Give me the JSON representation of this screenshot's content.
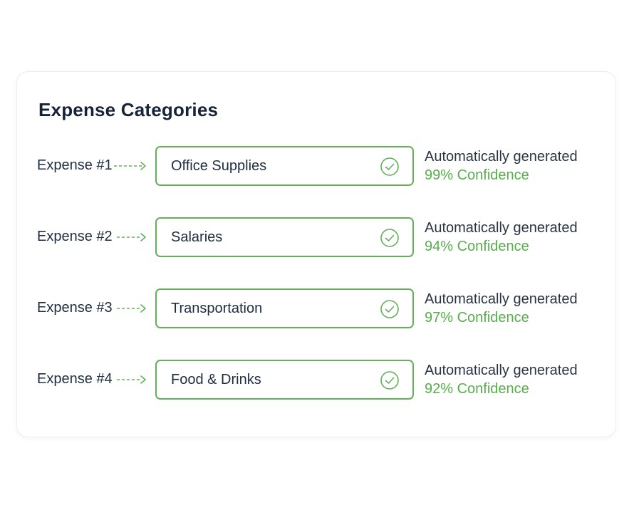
{
  "card": {
    "title": "Expense Categories"
  },
  "colors": {
    "accent": "#64b05a",
    "confidence_text": "#58ad4c",
    "title": "#172338",
    "body_text": "#1f2d42",
    "card_border": "#ececec"
  },
  "icons": {
    "arrow": "dashed-arrow-right-icon",
    "status": "check-circle-icon"
  },
  "expenses": [
    {
      "label": "Expense #1",
      "category": "Office Supplies",
      "source": "Automatically generated",
      "confidence": "99% Confidence"
    },
    {
      "label": "Expense #2",
      "category": "Salaries",
      "source": "Automatically generated",
      "confidence": "94% Confidence"
    },
    {
      "label": "Expense #3",
      "category": "Transportation",
      "source": "Automatically generated",
      "confidence": "97% Confidence"
    },
    {
      "label": "Expense #4",
      "category": "Food & Drinks",
      "source": "Automatically generated",
      "confidence": "92% Confidence"
    }
  ]
}
